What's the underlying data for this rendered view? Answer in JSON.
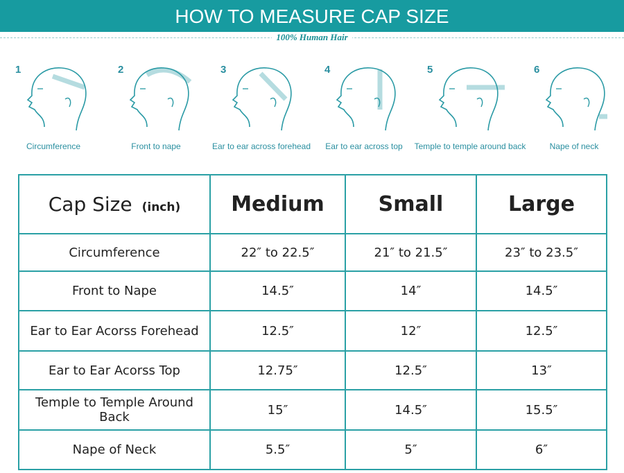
{
  "header": {
    "title": "HOW TO MEASURE CAP SIZE",
    "subtitle": "100% Human Hair"
  },
  "steps": [
    {
      "number": "1",
      "label": "Circumference"
    },
    {
      "number": "2",
      "label": "Front to nape"
    },
    {
      "number": "3",
      "label": "Ear to ear across forehead"
    },
    {
      "number": "4",
      "label": "Ear to ear across top"
    },
    {
      "number": "5",
      "label": "Temple to temple around back"
    },
    {
      "number": "6",
      "label": "Nape of neck"
    }
  ],
  "table": {
    "header": {
      "label": "Cap Size",
      "unit": "(inch)",
      "columns": [
        "Medium",
        "Small",
        "Large"
      ]
    },
    "rows": [
      [
        "Circumference",
        "22″ to 22.5″",
        "21″ to 21.5″",
        "23″ to 23.5″"
      ],
      [
        "Front to Nape",
        "14.5″",
        "14″",
        "14.5″"
      ],
      [
        "Ear to Ear Acorss Forehead",
        "12.5″",
        "12″",
        "12.5″"
      ],
      [
        "Ear to Ear Acorss Top",
        "12.75″",
        "12.5″",
        "13″"
      ],
      [
        "Temple to Temple Around Back",
        "15″",
        "14.5″",
        "15.5″"
      ],
      [
        "Nape of Neck",
        "5.5″",
        "5″",
        "6″"
      ]
    ]
  }
}
